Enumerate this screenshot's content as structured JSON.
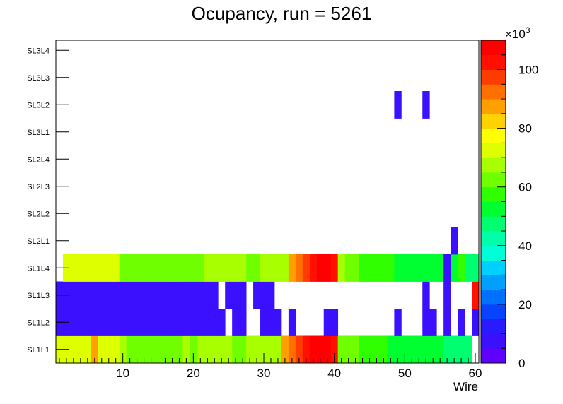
{
  "chart_data": {
    "type": "heatmap",
    "title": "Ocupancy, run = 5261",
    "xlabel": "Wire",
    "ylabel": "",
    "xlim": [
      0.5,
      60.5
    ],
    "x_ticks": [
      "10",
      "20",
      "30",
      "40",
      "50",
      "60"
    ],
    "x_tick_values": [
      10,
      20,
      30,
      40,
      50,
      60
    ],
    "y_categories": [
      "SL1L1",
      "SL1L2",
      "SL1L3",
      "SL1L4",
      "SL2L1",
      "SL2L2",
      "SL2L3",
      "SL2L4",
      "SL3L1",
      "SL3L2",
      "SL3L3",
      "SL3L4"
    ],
    "z_range": [
      0,
      110000
    ],
    "z_multiplier": "×10",
    "z_multiplier_exp": "3",
    "z_ticks": [
      "0",
      "20",
      "40",
      "60",
      "80",
      "100"
    ],
    "z_tick_values": [
      0,
      20000,
      40000,
      60000,
      80000,
      100000
    ],
    "palette": [
      "#6000ff",
      "#3a10ff",
      "#2a1aff",
      "#0844ff",
      "#0070ff",
      "#00a0ff",
      "#00d0ff",
      "#00ffd8",
      "#00ffa8",
      "#00ff70",
      "#00ff30",
      "#30ff00",
      "#70ff00",
      "#a8ff00",
      "#ddff00",
      "#ffff00",
      "#ffd200",
      "#ffa000",
      "#ff7000",
      "#ff3c00",
      "#ff1000",
      "#ff0000"
    ],
    "grid": false,
    "rows": {
      "SL1L1": [
        70000,
        70000,
        70000,
        70000,
        70000,
        85000,
        75000,
        75000,
        75000,
        68000,
        62000,
        62000,
        62000,
        62000,
        62000,
        62000,
        62000,
        62000,
        68000,
        62000,
        68000,
        68000,
        68000,
        68000,
        68000,
        62000,
        62000,
        68000,
        68000,
        68000,
        68000,
        68000,
        85000,
        92000,
        97000,
        102000,
        107000,
        110000,
        110000,
        102000,
        62000,
        62000,
        62000,
        58000,
        58000,
        58000,
        58000,
        52000,
        52000,
        52000,
        52000,
        52000,
        52000,
        52000,
        52000,
        45000,
        45000,
        45000,
        45000,
        0
      ],
      "SL1L2": [
        5000,
        5000,
        5000,
        5000,
        5000,
        5000,
        5000,
        5000,
        5000,
        5000,
        5000,
        5000,
        5000,
        5000,
        5000,
        5000,
        5000,
        5000,
        5000,
        5000,
        5000,
        5000,
        5000,
        5000,
        0,
        5000,
        5000,
        0,
        0,
        5000,
        5000,
        5000,
        0,
        5000,
        0,
        0,
        0,
        0,
        5000,
        5000,
        0,
        0,
        0,
        0,
        0,
        0,
        0,
        0,
        5000,
        0,
        0,
        0,
        5000,
        5000,
        0,
        5000,
        0,
        5000,
        0,
        5000
      ],
      "SL1L3": [
        5000,
        5000,
        5000,
        5000,
        5000,
        5000,
        5000,
        5000,
        5000,
        5000,
        5000,
        5000,
        5000,
        5000,
        5000,
        5000,
        5000,
        5000,
        5000,
        5000,
        5000,
        5000,
        5000,
        0,
        5000,
        5000,
        5000,
        0,
        5000,
        5000,
        5000,
        0,
        0,
        0,
        0,
        0,
        0,
        0,
        0,
        0,
        0,
        0,
        0,
        0,
        0,
        0,
        0,
        0,
        0,
        0,
        0,
        0,
        5000,
        0,
        0,
        5000,
        0,
        0,
        0,
        102000
      ],
      "SL1L4": [
        0,
        70000,
        70000,
        70000,
        70000,
        70000,
        70000,
        70000,
        70000,
        62000,
        62000,
        62000,
        62000,
        62000,
        62000,
        62000,
        62000,
        62000,
        62000,
        62000,
        62000,
        68000,
        68000,
        68000,
        68000,
        68000,
        68000,
        62000,
        62000,
        68000,
        68000,
        68000,
        68000,
        85000,
        92000,
        97000,
        102000,
        107000,
        107000,
        102000,
        68000,
        62000,
        62000,
        58000,
        58000,
        58000,
        58000,
        58000,
        52000,
        52000,
        52000,
        52000,
        52000,
        52000,
        52000,
        5000,
        52000,
        58000,
        45000,
        45000
      ],
      "SL2L1": [
        0,
        0,
        0,
        0,
        0,
        0,
        0,
        0,
        0,
        0,
        0,
        0,
        0,
        0,
        0,
        0,
        0,
        0,
        0,
        0,
        0,
        0,
        0,
        0,
        0,
        0,
        0,
        0,
        0,
        0,
        0,
        0,
        0,
        0,
        0,
        0,
        0,
        0,
        0,
        0,
        0,
        0,
        0,
        0,
        0,
        0,
        0,
        0,
        0,
        0,
        0,
        0,
        0,
        0,
        0,
        0,
        5000,
        0,
        0,
        0
      ],
      "SL2L2": [
        0,
        0,
        0,
        0,
        0,
        0,
        0,
        0,
        0,
        0,
        0,
        0,
        0,
        0,
        0,
        0,
        0,
        0,
        0,
        0,
        0,
        0,
        0,
        0,
        0,
        0,
        0,
        0,
        0,
        0,
        0,
        0,
        0,
        0,
        0,
        0,
        0,
        0,
        0,
        0,
        0,
        0,
        0,
        0,
        0,
        0,
        0,
        0,
        0,
        0,
        0,
        0,
        0,
        0,
        0,
        0,
        0,
        0,
        0,
        0
      ],
      "SL2L3": [
        0,
        0,
        0,
        0,
        0,
        0,
        0,
        0,
        0,
        0,
        0,
        0,
        0,
        0,
        0,
        0,
        0,
        0,
        0,
        0,
        0,
        0,
        0,
        0,
        0,
        0,
        0,
        0,
        0,
        0,
        0,
        0,
        0,
        0,
        0,
        0,
        0,
        0,
        0,
        0,
        0,
        0,
        0,
        0,
        0,
        0,
        0,
        0,
        0,
        0,
        0,
        0,
        0,
        0,
        0,
        0,
        0,
        0,
        0,
        0
      ],
      "SL2L4": [
        0,
        0,
        0,
        0,
        0,
        0,
        0,
        0,
        0,
        0,
        0,
        0,
        0,
        0,
        0,
        0,
        0,
        0,
        0,
        0,
        0,
        0,
        0,
        0,
        0,
        0,
        0,
        0,
        0,
        0,
        0,
        0,
        0,
        0,
        0,
        0,
        0,
        0,
        0,
        0,
        0,
        0,
        0,
        0,
        0,
        0,
        0,
        0,
        0,
        0,
        0,
        0,
        0,
        0,
        0,
        0,
        0,
        0,
        0,
        0
      ],
      "SL3L1": [
        0,
        0,
        0,
        0,
        0,
        0,
        0,
        0,
        0,
        0,
        0,
        0,
        0,
        0,
        0,
        0,
        0,
        0,
        0,
        0,
        0,
        0,
        0,
        0,
        0,
        0,
        0,
        0,
        0,
        0,
        0,
        0,
        0,
        0,
        0,
        0,
        0,
        0,
        0,
        0,
        0,
        0,
        0,
        0,
        0,
        0,
        0,
        0,
        0,
        0,
        0,
        0,
        0,
        0,
        0,
        0,
        0,
        0,
        0,
        0
      ],
      "SL3L2": [
        0,
        0,
        0,
        0,
        0,
        0,
        0,
        0,
        0,
        0,
        0,
        0,
        0,
        0,
        0,
        0,
        0,
        0,
        0,
        0,
        0,
        0,
        0,
        0,
        0,
        0,
        0,
        0,
        0,
        0,
        0,
        0,
        0,
        0,
        0,
        0,
        0,
        0,
        0,
        0,
        0,
        0,
        0,
        0,
        0,
        0,
        0,
        0,
        5000,
        0,
        0,
        0,
        5000,
        0,
        0,
        0,
        0,
        0,
        0,
        0
      ],
      "SL3L3": [
        0,
        0,
        0,
        0,
        0,
        0,
        0,
        0,
        0,
        0,
        0,
        0,
        0,
        0,
        0,
        0,
        0,
        0,
        0,
        0,
        0,
        0,
        0,
        0,
        0,
        0,
        0,
        0,
        0,
        0,
        0,
        0,
        0,
        0,
        0,
        0,
        0,
        0,
        0,
        0,
        0,
        0,
        0,
        0,
        0,
        0,
        0,
        0,
        0,
        0,
        0,
        0,
        0,
        0,
        0,
        0,
        0,
        0,
        0,
        0
      ],
      "SL3L4": [
        0,
        0,
        0,
        0,
        0,
        0,
        0,
        0,
        0,
        0,
        0,
        0,
        0,
        0,
        0,
        0,
        0,
        0,
        0,
        0,
        0,
        0,
        0,
        0,
        0,
        0,
        0,
        0,
        0,
        0,
        0,
        0,
        0,
        0,
        0,
        0,
        0,
        0,
        0,
        0,
        0,
        0,
        0,
        0,
        0,
        0,
        0,
        0,
        0,
        0,
        0,
        0,
        0,
        0,
        0,
        0,
        0,
        0,
        0,
        0
      ]
    }
  }
}
